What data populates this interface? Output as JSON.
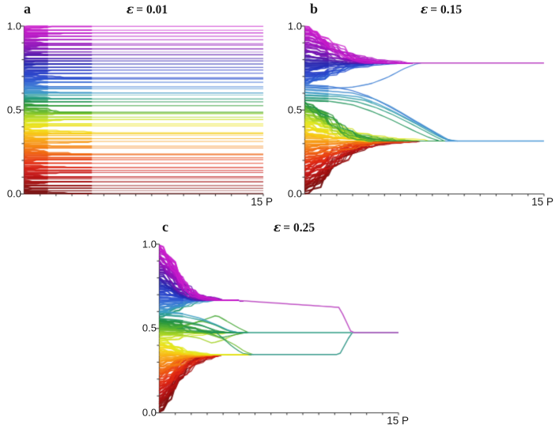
{
  "figure": {
    "background": "#ffffff",
    "kind": "opinion-dynamics trajectories, 3 panels"
  },
  "axis": {
    "color": "#3d3d3d",
    "text_color": "#1a1a1a"
  },
  "colormap": {
    "stops": [
      [
        0.0,
        "#6e0a0a"
      ],
      [
        0.06,
        "#9a0f0f"
      ],
      [
        0.12,
        "#c41414"
      ],
      [
        0.18,
        "#e22a12"
      ],
      [
        0.24,
        "#ee5a10"
      ],
      [
        0.3,
        "#f68f10"
      ],
      [
        0.345,
        "#f7b712"
      ],
      [
        0.39,
        "#f3dc16"
      ],
      [
        0.43,
        "#dfe81e"
      ],
      [
        0.47,
        "#a3d224"
      ],
      [
        0.51,
        "#4fae2e"
      ],
      [
        0.545,
        "#22913d"
      ],
      [
        0.575,
        "#259b84"
      ],
      [
        0.6,
        "#3a9ec2"
      ],
      [
        0.635,
        "#3c7fd4"
      ],
      [
        0.68,
        "#2c55d2"
      ],
      [
        0.73,
        "#2639c4"
      ],
      [
        0.78,
        "#2726ae"
      ],
      [
        0.83,
        "#5a17ac"
      ],
      [
        0.88,
        "#8c12b8"
      ],
      [
        0.94,
        "#b414c4"
      ],
      [
        1.0,
        "#cc1ecc"
      ]
    ]
  },
  "chart_data": [
    {
      "type": "line",
      "label": "a",
      "title": "ε = 0.01",
      "title_symbol": "ε",
      "title_value": "= 0.01",
      "epsilon": 0.01,
      "xlabel": "15 P",
      "xlim": [
        0,
        15
      ],
      "ylim": [
        0,
        1
      ],
      "y_ticks": [
        "1.0",
        "0.5",
        "0.0"
      ],
      "n_agents": 120,
      "seed": 11,
      "sim": {
        "mode": "quantize",
        "grid": 0.0185,
        "phase": 0.004,
        "s": [
          0.0,
          0.02
        ],
        "u": [
          0.25,
          0.55
        ],
        "dtE": [
          0.5,
          1.3
        ],
        "noise": 0.25,
        "ramp": 0.8,
        "stragglers": []
      },
      "summary": "opinions stay near initial values; ~50 small clusters persist to t=15"
    },
    {
      "type": "line",
      "label": "b",
      "title": "ε = 0.15",
      "title_symbol": "ε",
      "title_value": "= 0.15",
      "epsilon": 0.15,
      "xlabel": "15 P",
      "xlim": [
        0,
        15
      ],
      "ylim": [
        0,
        1
      ],
      "y_ticks": [
        "1.0",
        "0.5",
        "0.0"
      ],
      "n_agents": 120,
      "seed": 23,
      "sim": {
        "mode": "clusters",
        "ramp": 3.4,
        "clusters": [
          {
            "lo": 0.0,
            "hi": 0.555,
            "center": 0.315,
            "path": [
              [
                0,
                0.315
              ],
              [
                15,
                0.315
              ]
            ],
            "s": [
              0.03,
              0.07
            ],
            "u": [
              0.22,
              0.46
            ],
            "dtE": [
              0.45,
              1.0
            ],
            "noise": 0.5,
            "tf": 7.6,
            "line_color": "#4f9ad8",
            "line_from": 8.8
          },
          {
            "lo": 0.653,
            "hi": 1.01,
            "center": 0.78,
            "path": [
              [
                0,
                0.78
              ],
              [
                15,
                0.78
              ]
            ],
            "s": [
              0.035,
              0.08
            ],
            "u": [
              0.22,
              0.45
            ],
            "dtE": [
              0.35,
              0.8
            ],
            "noise": 0.4,
            "tf": 6.0,
            "line_color": "#bb44c4",
            "line_from": 6.6
          }
        ],
        "stragglers": [
          {
            "y0": 0.636,
            "pts": [
              [
                0,
                0.636
              ],
              [
                1.5,
                0.628
              ],
              [
                3.0,
                0.636
              ],
              [
                4.2,
                0.658
              ],
              [
                5.2,
                0.695
              ],
              [
                6.2,
                0.745
              ],
              [
                7.0,
                0.775
              ],
              [
                7.3,
                0.78
              ]
            ]
          },
          {
            "y0": 0.648,
            "pts": [
              [
                0,
                0.648
              ],
              [
                1.6,
                0.64
              ],
              [
                2.9,
                0.618
              ],
              [
                4.0,
                0.582
              ],
              [
                5.0,
                0.535
              ],
              [
                6.0,
                0.483
              ],
              [
                7.0,
                0.428
              ],
              [
                8.0,
                0.373
              ],
              [
                8.7,
                0.333
              ],
              [
                9.2,
                0.316
              ]
            ]
          },
          {
            "y0": 0.558,
            "pts": [
              [
                0,
                0.558
              ],
              [
                1.6,
                0.552
              ],
              [
                3.0,
                0.531
              ],
              [
                4.2,
                0.492
              ],
              [
                5.2,
                0.452
              ],
              [
                6.1,
                0.411
              ],
              [
                7.0,
                0.369
              ],
              [
                7.8,
                0.336
              ],
              [
                8.4,
                0.317
              ]
            ]
          },
          {
            "y0": 0.588,
            "pts": [
              [
                0,
                0.588
              ],
              [
                2.2,
                0.58
              ],
              [
                3.8,
                0.557
              ],
              [
                5.0,
                0.512
              ],
              [
                6.0,
                0.466
              ],
              [
                7.0,
                0.416
              ],
              [
                8.0,
                0.362
              ],
              [
                8.8,
                0.326
              ],
              [
                9.4,
                0.316
              ]
            ]
          },
          {
            "y0": 0.572,
            "pts": [
              [
                0,
                0.572
              ],
              [
                2.0,
                0.566
              ],
              [
                3.3,
                0.549
              ],
              [
                4.5,
                0.513
              ],
              [
                5.5,
                0.473
              ],
              [
                6.4,
                0.431
              ],
              [
                7.3,
                0.386
              ],
              [
                8.1,
                0.346
              ],
              [
                8.7,
                0.318
              ]
            ]
          },
          {
            "y0": 0.605,
            "pts": [
              [
                0,
                0.605
              ],
              [
                1.8,
                0.593
              ],
              [
                3.4,
                0.579
              ],
              [
                4.6,
                0.536
              ],
              [
                5.6,
                0.491
              ],
              [
                6.6,
                0.441
              ],
              [
                7.7,
                0.386
              ],
              [
                8.6,
                0.336
              ],
              [
                9.2,
                0.3155
              ]
            ]
          },
          {
            "y0": 0.622,
            "pts": [
              [
                0,
                0.622
              ],
              [
                1.5,
                0.613
              ],
              [
                3.0,
                0.601
              ],
              [
                4.4,
                0.566
              ],
              [
                5.4,
                0.521
              ],
              [
                6.3,
                0.471
              ],
              [
                7.2,
                0.421
              ],
              [
                8.3,
                0.361
              ],
              [
                9.0,
                0.323
              ],
              [
                9.6,
                0.315
              ]
            ]
          }
        ]
      },
      "summary": "two opinion clusters form at ≈0.78 and ≈0.315 and persist to t=15"
    },
    {
      "type": "line",
      "label": "c",
      "title": "ε = 0.25",
      "title_symbol": "ε",
      "title_value": "= 0.25",
      "epsilon": 0.25,
      "xlabel": "15 P",
      "xlim": [
        0,
        15
      ],
      "ylim": [
        0,
        1
      ],
      "y_ticks": [
        "1.0",
        "0.5",
        "0.0"
      ],
      "n_agents": 120,
      "seed": 5,
      "sim": {
        "mode": "clusters",
        "ramp": 2.0,
        "clusters": [
          {
            "lo": 0.0,
            "hi": 0.435,
            "center": 0.345,
            "path": [
              [
                0,
                0.345
              ],
              [
                11.3,
                0.345
              ],
              [
                12.05,
                0.475
              ],
              [
                15,
                0.475
              ]
            ],
            "s": [
              0.05,
              0.1
            ],
            "u": [
              0.25,
              0.5
            ],
            "dtE": [
              0.3,
              0.7
            ],
            "noise": 0.4,
            "tf": 3.7,
            "line_color": "#3a9b8d",
            "line_from": 5.6
          },
          {
            "lo": 0.435,
            "hi": 0.565,
            "center": 0.475,
            "path": [
              [
                0,
                0.475
              ],
              [
                12.05,
                0.475
              ]
            ],
            "s": [
              0.04,
              0.08
            ],
            "u": [
              0.2,
              0.45
            ],
            "dtE": [
              0.35,
              0.8
            ],
            "noise": 0.8,
            "tf": 4.2,
            "line_color": "#2e9c85",
            "line_from": 5.2
          },
          {
            "lo": 0.565,
            "hi": 1.01,
            "center": 0.668,
            "path": [
              [
                0,
                0.668
              ],
              [
                4.6,
                0.668
              ],
              [
                11.3,
                0.625
              ],
              [
                12.05,
                0.475
              ],
              [
                15,
                0.475
              ]
            ],
            "s": [
              0.05,
              0.1
            ],
            "u": [
              0.25,
              0.5
            ],
            "dtE": [
              0.3,
              0.7
            ],
            "noise": 0.4,
            "tf": 3.7,
            "line_color": "#c155c6",
            "line_from": 5.0
          }
        ],
        "stragglers": [
          {
            "y0": 0.47,
            "pts": [
              [
                0,
                0.47
              ],
              [
                1.4,
                0.461
              ],
              [
                2.5,
                0.443
              ],
              [
                3.3,
                0.413
              ],
              [
                4.0,
                0.432
              ],
              [
                4.7,
                0.462
              ],
              [
                5.3,
                0.475
              ]
            ]
          },
          {
            "y0": 0.52,
            "pts": [
              [
                0,
                0.52
              ],
              [
                1.2,
                0.512
              ],
              [
                2.2,
                0.532
              ],
              [
                3.0,
                0.558
              ],
              [
                3.6,
                0.578
              ],
              [
                4.3,
                0.54
              ],
              [
                5.0,
                0.502
              ],
              [
                5.6,
                0.475
              ]
            ]
          },
          {
            "y0": 0.545,
            "pts": [
              [
                0,
                0.545
              ],
              [
                1.5,
                0.536
              ],
              [
                2.8,
                0.513
              ],
              [
                3.6,
                0.486
              ],
              [
                4.4,
                0.475
              ],
              [
                5.3,
                0.475
              ]
            ]
          },
          {
            "y0": 0.508,
            "pts": [
              [
                0,
                0.508
              ],
              [
                1.0,
                0.503
              ],
              [
                1.8,
                0.52
              ],
              [
                2.6,
                0.545
              ],
              [
                3.4,
                0.525
              ],
              [
                4.2,
                0.49
              ],
              [
                5.0,
                0.475
              ]
            ]
          },
          {
            "y0": 0.532,
            "pts": [
              [
                0,
                0.532
              ],
              [
                1.3,
                0.522
              ],
              [
                2.4,
                0.5
              ],
              [
                3.2,
                0.47
              ],
              [
                3.9,
                0.445
              ],
              [
                4.6,
                0.46
              ],
              [
                5.4,
                0.475
              ]
            ]
          },
          {
            "y0": 0.6,
            "pts": [
              [
                0,
                0.6
              ],
              [
                1.4,
                0.588
              ],
              [
                2.6,
                0.56
              ],
              [
                3.5,
                0.525
              ],
              [
                4.3,
                0.49
              ],
              [
                5.0,
                0.475
              ]
            ]
          },
          {
            "y0": 0.582,
            "pts": [
              [
                0,
                0.582
              ],
              [
                1.5,
                0.571
              ],
              [
                2.8,
                0.546
              ],
              [
                3.8,
                0.512
              ],
              [
                4.5,
                0.48
              ],
              [
                5.2,
                0.475
              ]
            ]
          },
          {
            "y0": 0.497,
            "pts": [
              [
                0,
                0.497
              ],
              [
                1.6,
                0.49
              ],
              [
                3.0,
                0.469
              ],
              [
                4.0,
                0.439
              ],
              [
                4.8,
                0.399
              ],
              [
                5.4,
                0.361
              ],
              [
                5.9,
                0.345
              ]
            ]
          },
          {
            "y0": 0.558,
            "pts": [
              [
                0,
                0.558
              ],
              [
                1.4,
                0.546
              ],
              [
                2.6,
                0.521
              ],
              [
                3.4,
                0.49
              ],
              [
                4.0,
                0.441
              ],
              [
                4.6,
                0.391
              ],
              [
                5.2,
                0.353
              ],
              [
                5.8,
                0.345
              ]
            ]
          }
        ]
      },
      "summary": "single final cluster at ≈0.48 after a transient two-cluster phase merging at t≈12"
    }
  ]
}
